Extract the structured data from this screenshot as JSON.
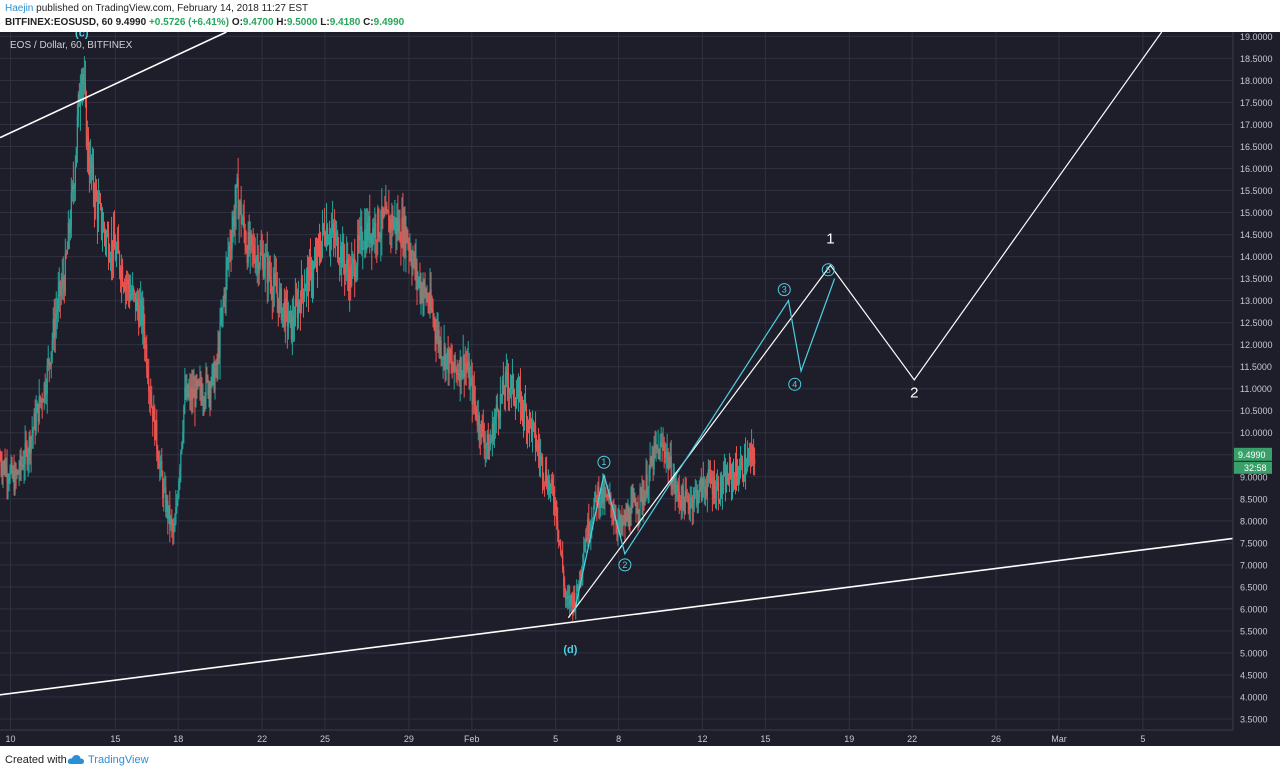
{
  "header": {
    "author": "Haejin",
    "published_text": " published on TradingView.com, February 14, 2018 11:27 EST",
    "symbol_text": "BITFINEX:EOSUSD, 60",
    "last": "9.4990",
    "change": "+0.5726 (+6.41%)",
    "ohlc": {
      "o": "9.4700",
      "h": "9.5000",
      "l": "9.4180",
      "c": "9.4990"
    },
    "ohlc_labels": {
      "o": "O:",
      "h": "H:",
      "l": "L:",
      "c": "C:"
    }
  },
  "footer": {
    "created_with": "Created with",
    "brand": "TradingView",
    "brand_icon": "tradingview-cloud-icon"
  },
  "colors": {
    "background": "#1e1e2b",
    "grid": "#2f3040",
    "up": "#26a69a",
    "down": "#ef5350",
    "wave": "#4dd0e1",
    "line": "#ffffff",
    "price_tag": "#3aa06a"
  },
  "chart_data": {
    "type": "candlestick",
    "title": "EOS / Dollar, 60, BITFINEX",
    "symbol": "BITFINEX:EOSUSD",
    "interval": "60",
    "ylim": [
      3.25,
      19.1
    ],
    "y_ticks": [
      "3.5000",
      "4.0000",
      "4.5000",
      "5.0000",
      "5.5000",
      "6.0000",
      "6.5000",
      "7.0000",
      "7.5000",
      "8.0000",
      "8.5000",
      "9.0000",
      "9.5000",
      "10.0000",
      "10.5000",
      "11.0000",
      "11.5000",
      "12.0000",
      "12.5000",
      "13.0000",
      "13.5000",
      "14.0000",
      "14.5000",
      "15.0000",
      "15.5000",
      "16.0000",
      "16.5000",
      "17.0000",
      "17.5000",
      "18.0000",
      "18.5000",
      "19.0000"
    ],
    "x_ticks": [
      {
        "label": "10",
        "t": 0.5
      },
      {
        "label": "15",
        "t": 5.5
      },
      {
        "label": "18",
        "t": 8.5
      },
      {
        "label": "22",
        "t": 12.5
      },
      {
        "label": "25",
        "t": 15.5
      },
      {
        "label": "29",
        "t": 19.5
      },
      {
        "label": "Feb",
        "t": 22.5
      },
      {
        "label": "5",
        "t": 26.5
      },
      {
        "label": "8",
        "t": 29.5
      },
      {
        "label": "12",
        "t": 33.5
      },
      {
        "label": "15",
        "t": 36.5
      },
      {
        "label": "19",
        "t": 40.5
      },
      {
        "label": "22",
        "t": 43.5
      },
      {
        "label": "26",
        "t": 47.5
      },
      {
        "label": "Mar",
        "t": 50.5
      },
      {
        "label": "5",
        "t": 54.5
      }
    ],
    "x_range": [
      0,
      58.8
    ],
    "price_key_points": [
      [
        0,
        9.4
      ],
      [
        0.7,
        8.9
      ],
      [
        1.3,
        9.6
      ],
      [
        2.2,
        11.2
      ],
      [
        2.7,
        12.8
      ],
      [
        3.1,
        13.6
      ],
      [
        3.5,
        15.6
      ],
      [
        3.9,
        18.5
      ],
      [
        4.2,
        16.3
      ],
      [
        4.6,
        15.2
      ],
      [
        5.0,
        14.5
      ],
      [
        5.6,
        14.0
      ],
      [
        6.2,
        13.2
      ],
      [
        6.8,
        12.6
      ],
      [
        7.2,
        10.8
      ],
      [
        7.8,
        8.6
      ],
      [
        8.3,
        7.6
      ],
      [
        8.8,
        10.8
      ],
      [
        9.5,
        10.9
      ],
      [
        10.3,
        11.3
      ],
      [
        10.9,
        14.1
      ],
      [
        11.3,
        15.4
      ],
      [
        11.8,
        14.2
      ],
      [
        12.6,
        13.9
      ],
      [
        13.3,
        13.0
      ],
      [
        13.9,
        12.4
      ],
      [
        14.5,
        13.4
      ],
      [
        15.0,
        13.7
      ],
      [
        15.5,
        14.7
      ],
      [
        16.1,
        14.3
      ],
      [
        16.7,
        13.5
      ],
      [
        17.3,
        14.5
      ],
      [
        18.0,
        14.7
      ],
      [
        18.7,
        14.8
      ],
      [
        19.4,
        14.5
      ],
      [
        19.9,
        13.5
      ],
      [
        20.5,
        12.9
      ],
      [
        21.0,
        12.0
      ],
      [
        21.6,
        11.4
      ],
      [
        22.2,
        11.6
      ],
      [
        22.8,
        10.3
      ],
      [
        23.3,
        9.6
      ],
      [
        23.7,
        10.5
      ],
      [
        24.2,
        11.2
      ],
      [
        24.8,
        10.7
      ],
      [
        25.3,
        10.2
      ],
      [
        25.9,
        9.2
      ],
      [
        26.5,
        8.4
      ],
      [
        27.0,
        6.1
      ],
      [
        27.5,
        6.3
      ],
      [
        27.9,
        7.6
      ],
      [
        28.5,
        8.6
      ],
      [
        29.1,
        8.4
      ],
      [
        29.6,
        7.8
      ],
      [
        30.2,
        8.3
      ],
      [
        30.7,
        8.6
      ],
      [
        31.2,
        9.5
      ],
      [
        31.7,
        9.7
      ],
      [
        32.2,
        8.7
      ],
      [
        32.7,
        8.4
      ],
      [
        33.2,
        8.6
      ],
      [
        33.8,
        8.9
      ],
      [
        34.3,
        8.7
      ],
      [
        34.8,
        9.0
      ],
      [
        35.2,
        9.1
      ],
      [
        35.8,
        9.4
      ],
      [
        36.0,
        9.5
      ]
    ],
    "last_price_label": "9.4990",
    "countdown": "32:58",
    "trendlines": [
      {
        "name": "upper resistance line",
        "from": [
          0,
          16.7
        ],
        "to": [
          10.8,
          19.1
        ]
      },
      {
        "name": "lower support line",
        "from": [
          0,
          4.05
        ],
        "to": [
          58.8,
          7.6
        ]
      }
    ],
    "projection_path": [
      [
        27.1,
        5.8
      ],
      [
        39.6,
        13.8
      ],
      [
        43.6,
        11.2
      ],
      [
        55.4,
        19.1
      ]
    ],
    "wave_path": [
      [
        27.4,
        5.95
      ],
      [
        28.8,
        9.05
      ],
      [
        29.8,
        7.25
      ],
      [
        37.6,
        13.0
      ],
      [
        38.2,
        11.4
      ],
      [
        39.8,
        13.5
      ]
    ],
    "wave_labels": [
      {
        "text": "1",
        "t": 28.8,
        "y": 9.33,
        "style": "circle"
      },
      {
        "text": "2",
        "t": 29.8,
        "y": 7.0,
        "style": "circle"
      },
      {
        "text": "3",
        "t": 37.4,
        "y": 13.25,
        "style": "circle"
      },
      {
        "text": "4",
        "t": 37.9,
        "y": 11.1,
        "style": "circle"
      },
      {
        "text": "5",
        "t": 39.5,
        "y": 13.7,
        "style": "circle"
      },
      {
        "text": "1",
        "t": 39.6,
        "y": 14.3,
        "style": "white"
      },
      {
        "text": "2",
        "t": 43.6,
        "y": 10.8,
        "style": "white"
      },
      {
        "text": "(c)",
        "t": 3.9,
        "y": 19.0,
        "style": "cyan"
      },
      {
        "text": "(d)",
        "t": 27.2,
        "y": 5.0,
        "style": "cyan"
      }
    ]
  }
}
